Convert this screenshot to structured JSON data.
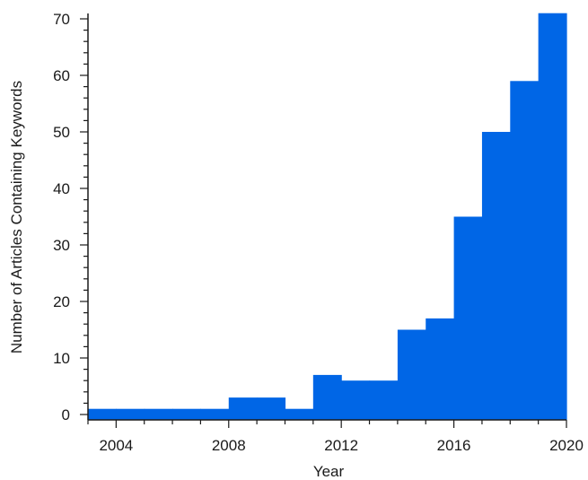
{
  "chart_data": {
    "type": "bar",
    "title": "",
    "xlabel": "Year",
    "ylabel": "Number of Articles Containing Keywords",
    "x_bins": [
      {
        "start": 2003,
        "end": 2004,
        "value": 1
      },
      {
        "start": 2004,
        "end": 2005,
        "value": 1
      },
      {
        "start": 2005,
        "end": 2006,
        "value": 1
      },
      {
        "start": 2006,
        "end": 2007,
        "value": 1
      },
      {
        "start": 2007,
        "end": 2008,
        "value": 1
      },
      {
        "start": 2008,
        "end": 2009,
        "value": 3
      },
      {
        "start": 2009,
        "end": 2010,
        "value": 3
      },
      {
        "start": 2010,
        "end": 2011,
        "value": 1
      },
      {
        "start": 2011,
        "end": 2012,
        "value": 7
      },
      {
        "start": 2012,
        "end": 2013,
        "value": 6
      },
      {
        "start": 2013,
        "end": 2014,
        "value": 6
      },
      {
        "start": 2014,
        "end": 2015,
        "value": 15
      },
      {
        "start": 2015,
        "end": 2016,
        "value": 17
      },
      {
        "start": 2016,
        "end": 2017,
        "value": 35
      },
      {
        "start": 2017,
        "end": 2018,
        "value": 50
      },
      {
        "start": 2018,
        "end": 2019,
        "value": 59
      },
      {
        "start": 2019,
        "end": 2020,
        "value": 71
      }
    ],
    "xlim": [
      2003,
      2020
    ],
    "ylim": [
      -1,
      72
    ],
    "x_ticks": [
      "2004",
      "2008",
      "2012",
      "2016",
      "2020"
    ],
    "y_ticks": [
      "0",
      "10",
      "20",
      "30",
      "40",
      "50",
      "60",
      "70"
    ],
    "grid": false,
    "legend": "none",
    "bar_color": "#0066e6",
    "axis_color": "#1a1a1a"
  }
}
